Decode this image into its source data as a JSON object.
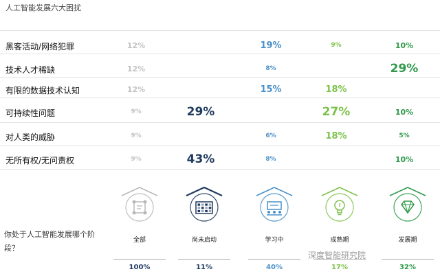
{
  "page": {
    "title": "人工智能发展六大困扰",
    "section_question": "你处于人工智能发展哪个阶段？",
    "watermark": "深度智能研究院"
  },
  "chart_data": {
    "type": "table",
    "title": "人工智能发展六大困扰",
    "categories": [
      "黑客活动/网络犯罪",
      "技术人才稀缺",
      "有限的数据技术认知",
      "可持续性问题",
      "对人类的威胁",
      "无所有权/无问责权"
    ],
    "series": [
      {
        "name": "全部",
        "values": [
          12,
          12,
          12,
          9,
          9,
          9
        ],
        "labels": [
          "12%",
          "12%",
          "12%",
          "9%",
          "9%",
          "9%"
        ],
        "color": "#b8b8b8"
      },
      {
        "name": "尚未启动",
        "values": [
          null,
          null,
          null,
          29,
          null,
          43
        ],
        "labels": [
          "",
          "",
          "",
          "29%",
          "",
          "43%"
        ],
        "color": "#1f3a5f"
      },
      {
        "name": "学习中",
        "values": [
          19,
          8,
          15,
          null,
          6,
          8
        ],
        "labels": [
          "19%",
          "8%",
          "15%",
          "",
          "6%",
          "8%"
        ],
        "color": "#4a90c8"
      },
      {
        "name": "成熟期",
        "values": [
          9,
          null,
          18,
          27,
          18,
          null
        ],
        "labels": [
          "9%",
          "",
          "18%",
          "27%",
          "18%",
          ""
        ],
        "color": "#7cc24a"
      },
      {
        "name": "发展期",
        "values": [
          10,
          29,
          null,
          10,
          5,
          10
        ],
        "labels": [
          "10%",
          "29%",
          "",
          "10%",
          "5%",
          "10%"
        ],
        "color": "#2e9a4a"
      }
    ],
    "stages": [
      {
        "name": "全部",
        "icon": "network-nodes-icon",
        "share": "100%",
        "color": "#b8b8b8"
      },
      {
        "name": "尚未启动",
        "icon": "grid-board-icon",
        "share": "11%",
        "color": "#1f3a5f"
      },
      {
        "name": "学习中",
        "icon": "classroom-icon",
        "share": "40%",
        "color": "#4a90c8"
      },
      {
        "name": "成熟期",
        "icon": "lightbulb-icon",
        "share": "17%",
        "color": "#7cc24a"
      },
      {
        "name": "发展期",
        "icon": "diamond-icon",
        "share": "32%",
        "color": "#2e9a4a"
      }
    ]
  }
}
